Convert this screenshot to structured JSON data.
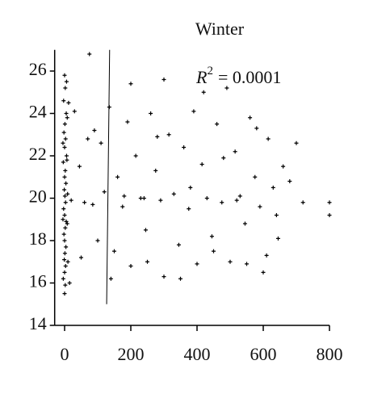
{
  "chart_data": {
    "type": "scatter",
    "title": "Winter",
    "annotation": {
      "symbol": "R",
      "exponent": "2",
      "text": "= 0.0001"
    },
    "xlim": [
      -30,
      800
    ],
    "ylim": [
      14,
      27
    ],
    "xticks": [
      0,
      200,
      400,
      600,
      800
    ],
    "yticks": [
      14,
      16,
      18,
      20,
      22,
      24,
      26
    ],
    "color": "#000000",
    "trendline": {
      "x": [
        136,
        127
      ],
      "y": [
        27,
        15
      ]
    },
    "x": [
      0,
      2,
      -3,
      5,
      1,
      -2,
      3,
      0,
      6,
      -4,
      2,
      0,
      4,
      -1,
      1,
      3,
      -3,
      0,
      5,
      2,
      -2,
      0,
      4,
      1,
      -1,
      3,
      0,
      -4,
      2,
      0,
      6,
      8,
      7,
      9,
      8,
      10,
      -5,
      -5,
      12,
      15,
      30,
      45,
      60,
      75,
      90,
      100,
      110,
      120,
      135,
      150,
      160,
      175,
      190,
      200,
      215,
      230,
      245,
      260,
      275,
      290,
      300,
      315,
      330,
      345,
      360,
      375,
      390,
      400,
      415,
      430,
      445,
      460,
      475,
      490,
      500,
      515,
      530,
      545,
      560,
      575,
      590,
      600,
      615,
      630,
      645,
      660,
      680,
      700,
      720,
      50,
      140,
      250,
      350,
      450,
      550,
      610,
      200,
      300,
      420,
      70,
      180,
      280,
      380,
      480,
      580,
      640,
      20,
      85,
      240,
      520,
      800,
      800
    ],
    "y": [
      25.8,
      25.2,
      24.6,
      24,
      23.5,
      23.1,
      22.8,
      22.4,
      22,
      21.7,
      21.3,
      21,
      20.7,
      20.4,
      20.1,
      19.8,
      19.5,
      19.2,
      18.9,
      18.6,
      18.3,
      18,
      17.7,
      17.4,
      17.1,
      16.8,
      16.5,
      16.2,
      15.9,
      15.5,
      25.5,
      23.8,
      21.8,
      20.2,
      18.8,
      17,
      22.6,
      19,
      24.5,
      16,
      24.1,
      21.5,
      19.8,
      26.8,
      23.2,
      18,
      22.6,
      20.3,
      24.3,
      17.5,
      21,
      19.6,
      23.6,
      16.8,
      22,
      20,
      18.5,
      24,
      21.3,
      19.9,
      16.3,
      23,
      20.2,
      17.8,
      22.4,
      19.5,
      24.1,
      16.9,
      21.6,
      20,
      18.2,
      23.5,
      19.8,
      25.2,
      17,
      22.2,
      20.1,
      18.8,
      23.8,
      21,
      19.6,
      16.5,
      22.8,
      20.5,
      18.1,
      21.5,
      20.8,
      22.6,
      19.8,
      17.2,
      16.2,
      17,
      16.2,
      17.5,
      16.9,
      17.3,
      25.4,
      25.6,
      25,
      22.8,
      20.1,
      22.9,
      20.5,
      21.9,
      23.3,
      19.2,
      19.9,
      19.7,
      20,
      19.9,
      19.8,
      19.2
    ]
  }
}
